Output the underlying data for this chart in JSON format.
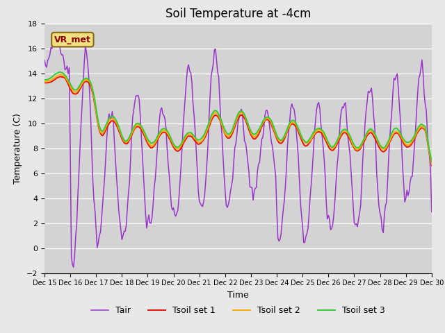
{
  "title": "Soil Temperature at -4cm",
  "xlabel": "Time",
  "ylabel": "Temperature (C)",
  "ylim": [
    -2,
    18
  ],
  "yticks": [
    -2,
    0,
    2,
    4,
    6,
    8,
    10,
    12,
    14,
    16,
    18
  ],
  "xtick_labels": [
    "Dec 15",
    "Dec 16",
    "Dec 17",
    "Dec 18",
    "Dec 19",
    "Dec 20",
    "Dec 21",
    "Dec 22",
    "Dec 23",
    "Dec 24",
    "Dec 25",
    "Dec 26",
    "Dec 27",
    "Dec 28",
    "Dec 29",
    "Dec 30"
  ],
  "xtick_positions": [
    0,
    24,
    48,
    72,
    96,
    120,
    144,
    168,
    192,
    216,
    240,
    264,
    288,
    312,
    336,
    360
  ],
  "annotation_text": "VR_met",
  "annotation_color": "#8B0000",
  "fig_bg_color": "#e8e8e8",
  "plot_bg_color": "#d3d3d3",
  "grid_color": "#ffffff",
  "line_colors": {
    "Tair": "#9933cc",
    "Tsoil1": "#ee1100",
    "Tsoil2": "#ffaa00",
    "Tsoil3": "#33cc33"
  },
  "line_widths": {
    "Tair": 1.1,
    "Tsoil1": 1.4,
    "Tsoil2": 1.4,
    "Tsoil3": 1.4
  },
  "legend_labels": [
    "Tair",
    "Tsoil set 1",
    "Tsoil set 2",
    "Tsoil set 3"
  ],
  "title_fontsize": 12,
  "axis_fontsize": 9,
  "tick_fontsize": 8,
  "legend_fontsize": 9
}
